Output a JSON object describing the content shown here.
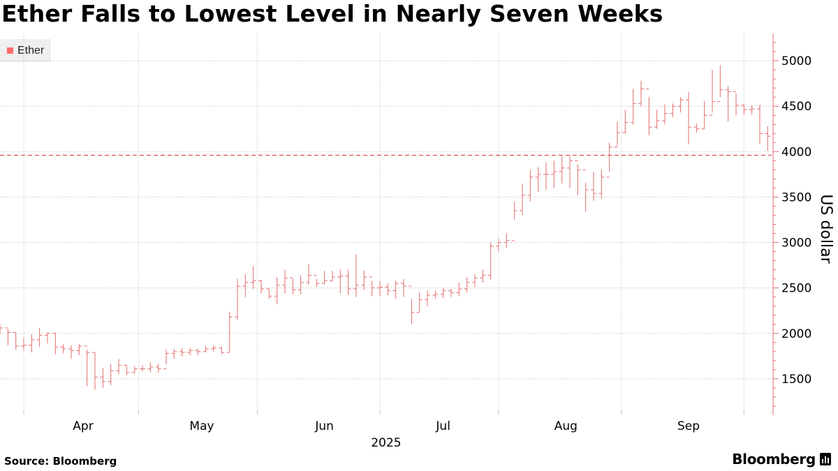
{
  "title": "Ether Falls to Lowest Level in Nearly Seven Weeks",
  "legend": {
    "label": "Ether",
    "color": "#ff6b6b"
  },
  "source": "Source: Bloomberg",
  "brand": "Bloomberg",
  "icons": {
    "brand": "bar-chart-icon"
  },
  "chart_data": {
    "type": "ohlc",
    "title": "Ether Falls to Lowest Level in Nearly Seven Weeks",
    "ylabel": "US dollar",
    "xlabel": "2025",
    "ylim": [
      1100,
      5300
    ],
    "yticks": [
      1500,
      2000,
      2500,
      3000,
      3500,
      4000,
      4500,
      5000
    ],
    "xlim": [
      "2025-03-11",
      "2025-09-22"
    ],
    "xtick_labels": [
      {
        "label": "Apr",
        "date": "2025-04-01"
      },
      {
        "label": "May",
        "date": "2025-05-01"
      },
      {
        "label": "Jun",
        "date": "2025-06-01"
      },
      {
        "label": "Jul",
        "date": "2025-07-01"
      },
      {
        "label": "Aug",
        "date": "2025-08-01"
      },
      {
        "label": "Sep",
        "date": "2025-09-01"
      }
    ],
    "reference_line": 3960,
    "grid": true,
    "legend_position": "top-left",
    "series_color": "#e36c6c",
    "series": [
      {
        "name": "Ether",
        "dates": [
          "2025-03-11",
          "2025-03-13",
          "2025-03-15",
          "2025-03-17",
          "2025-03-19",
          "2025-03-21",
          "2025-03-23",
          "2025-03-25",
          "2025-03-27",
          "2025-03-29",
          "2025-03-31",
          "2025-04-02",
          "2025-04-04",
          "2025-04-06",
          "2025-04-08",
          "2025-04-10",
          "2025-04-12",
          "2025-04-14",
          "2025-04-16",
          "2025-04-18",
          "2025-04-20",
          "2025-04-22",
          "2025-04-24",
          "2025-04-26",
          "2025-04-28",
          "2025-04-30",
          "2025-05-02",
          "2025-05-04",
          "2025-05-06",
          "2025-05-08",
          "2025-05-10",
          "2025-05-12",
          "2025-05-14",
          "2025-05-16",
          "2025-05-18",
          "2025-05-20",
          "2025-05-22",
          "2025-05-24",
          "2025-05-26",
          "2025-05-28",
          "2025-05-30",
          "2025-06-01",
          "2025-06-03",
          "2025-06-05",
          "2025-06-07",
          "2025-06-09",
          "2025-06-11",
          "2025-06-13",
          "2025-06-15",
          "2025-06-17",
          "2025-06-19",
          "2025-06-21",
          "2025-06-23",
          "2025-06-25",
          "2025-06-27",
          "2025-06-29",
          "2025-07-01",
          "2025-07-03",
          "2025-07-05",
          "2025-07-07",
          "2025-07-09",
          "2025-07-11",
          "2025-07-13",
          "2025-07-15",
          "2025-07-17",
          "2025-07-19",
          "2025-07-21",
          "2025-07-23",
          "2025-07-25",
          "2025-07-27",
          "2025-07-29",
          "2025-07-31",
          "2025-08-02",
          "2025-08-04",
          "2025-08-06",
          "2025-08-08",
          "2025-08-10",
          "2025-08-12",
          "2025-08-14",
          "2025-08-16",
          "2025-08-18",
          "2025-08-20",
          "2025-08-22",
          "2025-08-24",
          "2025-08-26",
          "2025-08-28",
          "2025-08-30",
          "2025-09-01",
          "2025-09-03",
          "2025-09-05",
          "2025-09-07",
          "2025-09-09",
          "2025-09-11",
          "2025-09-13",
          "2025-09-15",
          "2025-09-17",
          "2025-09-19",
          "2025-09-21"
        ],
        "close": [
          2060,
          2010,
          1860,
          1870,
          1930,
          1980,
          2000,
          1850,
          1830,
          1810,
          1860,
          1790,
          1520,
          1470,
          1590,
          1650,
          1570,
          1610,
          1610,
          1630,
          1610,
          1780,
          1800,
          1790,
          1810,
          1800,
          1830,
          1840,
          1790,
          2180,
          2520,
          2560,
          2580,
          2490,
          2410,
          2530,
          2610,
          2480,
          2560,
          2640,
          2550,
          2580,
          2620,
          2630,
          2490,
          2530,
          2620,
          2500,
          2510,
          2470,
          2550,
          2520,
          2230,
          2370,
          2420,
          2430,
          2470,
          2450,
          2490,
          2560,
          2610,
          2640,
          2960,
          3000,
          3020,
          3350,
          3520,
          3720,
          3750,
          3750,
          3780,
          3820,
          3900,
          3800,
          3580,
          3540,
          3720,
          4050,
          4210,
          4320,
          4530,
          4690,
          4270,
          4340,
          4420,
          4500,
          4570,
          4270,
          4250,
          4400,
          4550,
          4680,
          4660,
          4510,
          4460,
          4470,
          4200,
          4170
        ],
        "high": [
          2110,
          2050,
          2010,
          1950,
          1990,
          2060,
          2010,
          2010,
          1880,
          1870,
          1880,
          1820,
          1790,
          1620,
          1660,
          1720,
          1650,
          1640,
          1650,
          1680,
          1670,
          1820,
          1830,
          1840,
          1840,
          1830,
          1860,
          1870,
          1850,
          2240,
          2600,
          2650,
          2740,
          2590,
          2490,
          2620,
          2700,
          2600,
          2640,
          2760,
          2600,
          2690,
          2690,
          2700,
          2700,
          2870,
          2690,
          2580,
          2570,
          2550,
          2580,
          2600,
          2380,
          2450,
          2470,
          2470,
          2500,
          2490,
          2560,
          2620,
          2650,
          2700,
          3000,
          3040,
          3100,
          3450,
          3650,
          3800,
          3830,
          3880,
          3900,
          3950,
          3950,
          3860,
          3660,
          3780,
          3800,
          4100,
          4330,
          4460,
          4690,
          4780,
          4600,
          4460,
          4520,
          4530,
          4600,
          4660,
          4310,
          4560,
          4900,
          4950,
          4720,
          4640,
          4530,
          4510,
          4520,
          4280
        ],
        "low": [
          1990,
          1870,
          1820,
          1810,
          1790,
          1850,
          1890,
          1770,
          1780,
          1720,
          1760,
          1420,
          1380,
          1400,
          1430,
          1550,
          1540,
          1560,
          1580,
          1570,
          1570,
          1660,
          1720,
          1750,
          1760,
          1760,
          1790,
          1800,
          1770,
          1790,
          2150,
          2400,
          2490,
          2440,
          2380,
          2320,
          2440,
          2430,
          2430,
          2540,
          2510,
          2540,
          2570,
          2440,
          2420,
          2400,
          2480,
          2410,
          2410,
          2420,
          2380,
          2400,
          2100,
          2240,
          2300,
          2380,
          2390,
          2400,
          2410,
          2450,
          2510,
          2560,
          2590,
          2900,
          2940,
          3250,
          3300,
          3450,
          3560,
          3580,
          3600,
          3650,
          3600,
          3520,
          3340,
          3460,
          3480,
          3780,
          4060,
          4200,
          4300,
          4500,
          4180,
          4250,
          4300,
          4380,
          4430,
          4080,
          4210,
          4250,
          4430,
          4600,
          4330,
          4400,
          4410,
          4410,
          4080,
          4010
        ]
      }
    ]
  }
}
